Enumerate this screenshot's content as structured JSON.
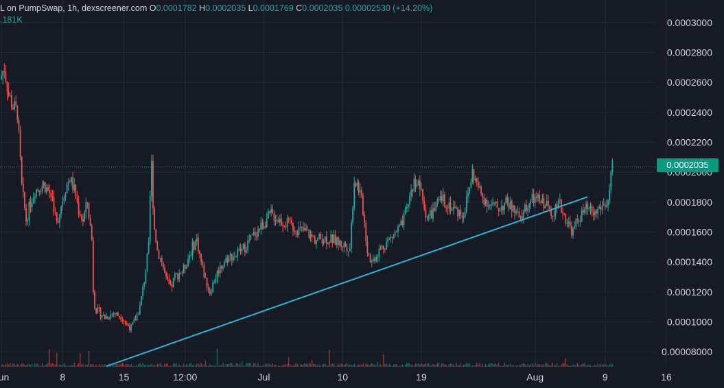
{
  "legend": {
    "symbol": "L on PumpSwap, 1h, dexscreener.com",
    "o_label": "O",
    "o_value": "0.0001782",
    "h_label": "H",
    "h_value": "0.0002035",
    "l_label": "L",
    "l_value": "0.0001769",
    "c_label": "C",
    "c_value": "0.0002035",
    "change": "0.00002530 (+14.20%)",
    "volume": ".181K"
  },
  "colors": {
    "background": "#161a25",
    "up": "#26a69a",
    "down": "#ef5350",
    "trendline": "#2bb5d6",
    "grid": "#242833",
    "axis_text": "#d1d4dc",
    "price_tag": "#089981"
  },
  "chart_data": {
    "type": "candlestick",
    "title": "",
    "ylim": [
      7e-05,
      0.000305
    ],
    "y_ticks": [
      "0.0003000",
      "0.0002800",
      "0.0002600",
      "0.0002400",
      "0.0002200",
      "0.0002000",
      "0.0001800",
      "0.0001600",
      "0.0001400",
      "0.0001200",
      "0.0001000",
      "0.00008000"
    ],
    "y_tick_values": [
      0.0003,
      0.00028,
      0.00026,
      0.00024,
      0.00022,
      0.0002,
      0.00018,
      0.00016,
      0.00014,
      0.00012,
      0.0001,
      8e-05
    ],
    "x_ticks": [
      "Jun",
      "8",
      "15",
      "12:00",
      "Jul",
      "10",
      "19",
      "Aug",
      "9",
      "16"
    ],
    "x_range": [
      "Jun 1",
      "Aug 23"
    ],
    "x_tick_dates": [
      "Jun 1",
      "Jun 8",
      "Jun 15",
      "Jun 22",
      "Jul 1",
      "Jul 10",
      "Jul 19",
      "Aug 1",
      "Aug 9",
      "Aug 16"
    ],
    "x_tick_days": [
      0,
      7,
      14,
      21,
      30,
      39,
      48,
      61,
      69,
      76
    ],
    "last_price": "0.0002035",
    "last_price_value": 0.0002035,
    "grid": true,
    "price_path": [
      [
        0,
        0.000262
      ],
      [
        0.5,
        0.00027
      ],
      [
        1,
        0.000252
      ],
      [
        1.5,
        0.000244
      ],
      [
        2,
        0.00024
      ],
      [
        2.5,
        0.00019
      ],
      [
        3,
        0.000168
      ],
      [
        3.5,
        0.00018
      ],
      [
        4,
        0.000188
      ],
      [
        5,
        0.000192
      ],
      [
        6,
        0.000183
      ],
      [
        6.5,
        0.000165
      ],
      [
        7,
        0.000178
      ],
      [
        7.5,
        0.00019
      ],
      [
        8,
        0.000196
      ],
      [
        8.5,
        0.000188
      ],
      [
        9,
        0.000175
      ],
      [
        9.5,
        0.000168
      ],
      [
        10,
        0.00018
      ],
      [
        10.5,
        0.000155
      ],
      [
        10.7,
        0.000115
      ],
      [
        11,
        0.000108
      ],
      [
        12,
        0.000103
      ],
      [
        13,
        0.000106
      ],
      [
        14,
        0.000103
      ],
      [
        14.5,
        9.8e-05
      ],
      [
        15,
        9.6e-05
      ],
      [
        15.5,
        0.000102
      ],
      [
        16,
        0.00011
      ],
      [
        16.5,
        0.000128
      ],
      [
        17,
        0.00015
      ],
      [
        17.3,
        0.00021
      ],
      [
        17.6,
        0.000165
      ],
      [
        18,
        0.000148
      ],
      [
        18.5,
        0.00014
      ],
      [
        19,
        0.000128
      ],
      [
        19.5,
        0.000122
      ],
      [
        20,
        0.00013
      ],
      [
        21,
        0.000135
      ],
      [
        22,
        0.00015
      ],
      [
        22.5,
        0.000155
      ],
      [
        23,
        0.00014
      ],
      [
        23.5,
        0.000128
      ],
      [
        24,
        0.00012
      ],
      [
        24.5,
        0.000128
      ],
      [
        25,
        0.000135
      ],
      [
        26,
        0.000143
      ],
      [
        27,
        0.000145
      ],
      [
        28,
        0.00015
      ],
      [
        29,
        0.000158
      ],
      [
        30,
        0.000165
      ],
      [
        31,
        0.000172
      ],
      [
        32,
        0.000168
      ],
      [
        33,
        0.000165
      ],
      [
        34,
        0.000162
      ],
      [
        35,
        0.00016
      ],
      [
        36,
        0.000155
      ],
      [
        37,
        0.000156
      ],
      [
        38,
        0.000155
      ],
      [
        39,
        0.000152
      ],
      [
        40,
        0.00015
      ],
      [
        40.5,
        0.000195
      ],
      [
        41,
        0.00019
      ],
      [
        41.5,
        0.000175
      ],
      [
        42,
        0.000148
      ],
      [
        42.5,
        0.00014
      ],
      [
        43,
        0.000145
      ],
      [
        44,
        0.000152
      ],
      [
        45,
        0.000158
      ],
      [
        46,
        0.000165
      ],
      [
        46.5,
        0.000175
      ],
      [
        47,
        0.000188
      ],
      [
        47.5,
        0.000195
      ],
      [
        48,
        0.00019
      ],
      [
        48.5,
        0.000175
      ],
      [
        49,
        0.00017
      ],
      [
        50,
        0.000178
      ],
      [
        50.5,
        0.000182
      ],
      [
        51,
        0.00018
      ],
      [
        52,
        0.000175
      ],
      [
        53,
        0.000172
      ],
      [
        53.5,
        0.000185
      ],
      [
        54,
        0.0002
      ],
      [
        54.5,
        0.000192
      ],
      [
        55,
        0.000185
      ],
      [
        56,
        0.000178
      ],
      [
        57,
        0.000176
      ],
      [
        58,
        0.00018
      ],
      [
        59,
        0.000172
      ],
      [
        59.5,
        0.000168
      ],
      [
        60,
        0.000176
      ],
      [
        61,
        0.000182
      ],
      [
        62,
        0.00018
      ],
      [
        62.5,
        0.000178
      ],
      [
        63,
        0.000174
      ],
      [
        64,
        0.000178
      ],
      [
        65,
        0.000165
      ],
      [
        65.5,
        0.00016
      ],
      [
        66,
        0.000168
      ],
      [
        67,
        0.000175
      ],
      [
        68,
        0.000172
      ],
      [
        68.5,
        0.000176
      ],
      [
        69,
        0.000178
      ],
      [
        69.5,
        0.00018
      ],
      [
        70,
        0.0002035
      ]
    ],
    "trendline": {
      "start": [
        "Jun 13",
        7.03e-05
      ],
      "end": [
        "Aug 7",
        0.0001835
      ]
    }
  }
}
